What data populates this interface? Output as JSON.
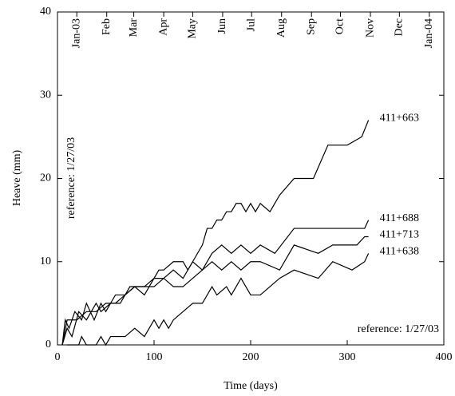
{
  "chart_data": {
    "type": "line",
    "x_label": "Time (days)",
    "y_label": "Heave (mm)",
    "annotations": [
      "reference: 1/27/03",
      "reference: 1/27/03"
    ],
    "xlim": [
      0,
      400
    ],
    "xticks": [
      0,
      100,
      200,
      300,
      400
    ],
    "ylim": [
      0,
      40
    ],
    "yticks": [
      0,
      10,
      20,
      30,
      40
    ],
    "x2ticks": [
      {
        "value": 20,
        "label": "Jan-03"
      },
      {
        "value": 51,
        "label": "Feb"
      },
      {
        "value": 79,
        "label": "Mar"
      },
      {
        "value": 110,
        "label": "Apr"
      },
      {
        "value": 140,
        "label": "May"
      },
      {
        "value": 171,
        "label": "Jun"
      },
      {
        "value": 201,
        "label": "Jul"
      },
      {
        "value": 232,
        "label": "Aug"
      },
      {
        "value": 263,
        "label": "Sep"
      },
      {
        "value": 293,
        "label": "Oct"
      },
      {
        "value": 324,
        "label": "Nov"
      },
      {
        "value": 354,
        "label": "Dec"
      },
      {
        "value": 385,
        "label": "Jan-04"
      }
    ],
    "series": [
      {
        "name": "411+663",
        "color": "#000000",
        "x": [
          5,
          8,
          12,
          18,
          25,
          30,
          38,
          45,
          50,
          55,
          60,
          70,
          80,
          90,
          100,
          105,
          110,
          120,
          130,
          135,
          140,
          150,
          155,
          160,
          165,
          170,
          175,
          180,
          185,
          190,
          195,
          200,
          205,
          210,
          220,
          230,
          245,
          265,
          280,
          300,
          315,
          322
        ],
        "values": [
          0,
          3,
          2,
          4,
          3,
          5,
          3,
          5,
          4,
          5,
          6,
          6,
          7,
          7,
          8,
          9,
          9,
          10,
          10,
          9,
          10,
          12,
          14,
          14,
          15,
          15,
          16,
          16,
          17,
          17,
          16,
          17,
          16,
          17,
          16,
          18,
          20,
          20,
          24,
          24,
          25,
          27
        ]
      },
      {
        "name": "411+688",
        "color": "#000000",
        "x": [
          5,
          10,
          15,
          22,
          30,
          40,
          45,
          55,
          65,
          75,
          90,
          100,
          110,
          120,
          130,
          140,
          150,
          160,
          170,
          180,
          190,
          200,
          210,
          225,
          245,
          300,
          318,
          322
        ],
        "values": [
          0,
          2,
          1,
          4,
          3,
          5,
          4,
          5,
          5,
          7,
          7,
          7,
          8,
          9,
          8,
          10,
          9,
          11,
          12,
          11,
          12,
          11,
          12,
          11,
          14,
          14,
          14,
          15
        ]
      },
      {
        "name": "411+713",
        "color": "#000000",
        "x": [
          5,
          10,
          20,
          30,
          40,
          50,
          60,
          70,
          80,
          90,
          100,
          110,
          120,
          130,
          140,
          150,
          160,
          170,
          180,
          190,
          200,
          210,
          230,
          245,
          270,
          285,
          310,
          318,
          322
        ],
        "values": [
          0,
          3,
          3,
          4,
          4,
          5,
          5,
          6,
          7,
          6,
          8,
          8,
          7,
          7,
          8,
          9,
          10,
          9,
          10,
          9,
          10,
          10,
          9,
          12,
          11,
          12,
          12,
          13,
          13
        ]
      },
      {
        "name": "411+638",
        "color": "#000000",
        "x": [
          10,
          22,
          25,
          30,
          40,
          45,
          50,
          55,
          70,
          80,
          90,
          100,
          105,
          110,
          115,
          120,
          130,
          140,
          150,
          160,
          165,
          175,
          180,
          190,
          200,
          210,
          230,
          245,
          270,
          285,
          305,
          318,
          322
        ],
        "values": [
          0,
          0,
          1,
          0,
          0,
          1,
          0,
          1,
          1,
          2,
          1,
          3,
          2,
          3,
          2,
          3,
          4,
          5,
          5,
          7,
          6,
          7,
          6,
          8,
          6,
          6,
          8,
          9,
          8,
          10,
          9,
          10,
          11
        ]
      }
    ]
  }
}
